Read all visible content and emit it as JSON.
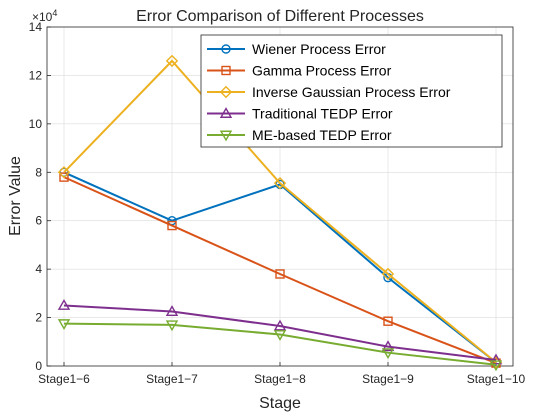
{
  "chart_data": {
    "type": "line",
    "title": "Error Comparison of Different Processes",
    "xlabel": "Stage",
    "ylabel": "Error Value",
    "y_exponent_label": "×10",
    "y_exponent_power": "4",
    "categories": [
      "Stage1−6",
      "Stage1−7",
      "Stage1−8",
      "Stage1−9",
      "Stage1−10"
    ],
    "y_tick_labels": [
      "0",
      "2",
      "4",
      "6",
      "8",
      "10",
      "12",
      "14"
    ],
    "ylim": [
      0,
      140000
    ],
    "grid": true,
    "legend_position": "top-right",
    "series": [
      {
        "name": "Wiener Process Error",
        "color": "#0072BD",
        "marker": "circle",
        "values": [
          80000,
          60000,
          75000,
          36500,
          1500
        ]
      },
      {
        "name": "Gamma Process Error",
        "color": "#D95319",
        "marker": "square",
        "values": [
          78000,
          58000,
          38000,
          18500,
          1200
        ]
      },
      {
        "name": "Inverse Gaussian Process Error",
        "color": "#EDB120",
        "marker": "diamond",
        "values": [
          80000,
          126000,
          75500,
          38000,
          1500
        ]
      },
      {
        "name": "Traditional TEDP Error",
        "color": "#7E2F8E",
        "marker": "triangle-up",
        "values": [
          25000,
          22500,
          16500,
          8000,
          2500
        ]
      },
      {
        "name": "ME-based TEDP Error",
        "color": "#77AC30",
        "marker": "triangle-down",
        "values": [
          17500,
          17000,
          13000,
          5500,
          500
        ]
      }
    ]
  }
}
